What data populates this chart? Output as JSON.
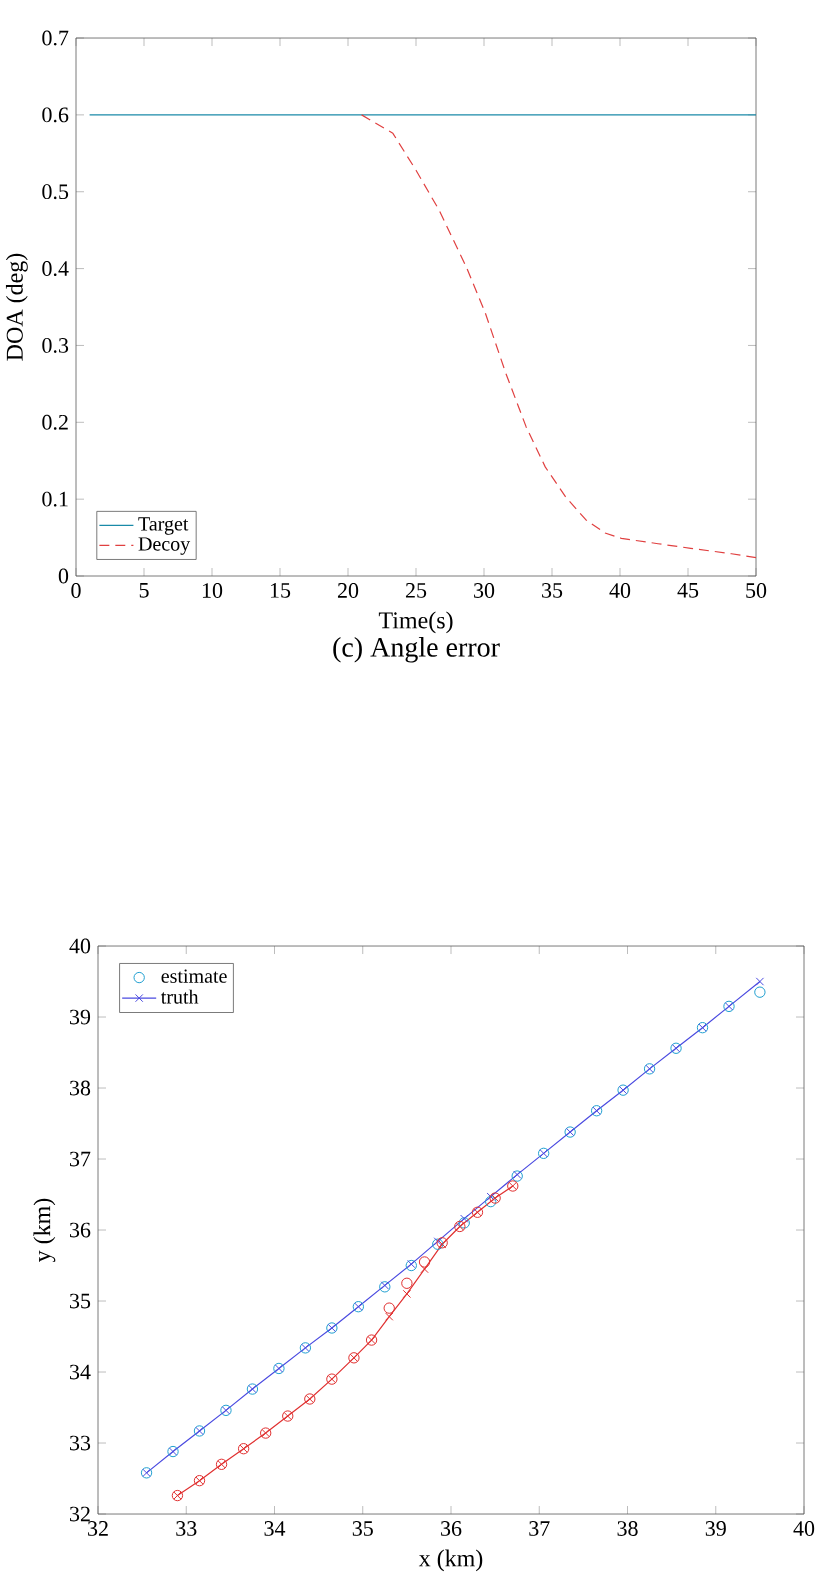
{
  "chart_data": [
    {
      "type": "line",
      "xlabel": "Time(s)",
      "ylabel": "DOA (deg)",
      "annotations": [
        "(c) Angle error"
      ],
      "xlim": [
        0,
        50
      ],
      "ylim": [
        0,
        0.7
      ],
      "xticks": [
        0,
        5,
        10,
        15,
        20,
        25,
        30,
        35,
        40,
        45,
        50
      ],
      "yticks": [
        0,
        0.1,
        0.2,
        0.3,
        0.4,
        0.5,
        0.6,
        0.7
      ],
      "legend": "bottom left",
      "marker": "none",
      "series": [
        {
          "name": "Target",
          "color": "#1a8aa8",
          "line_style": "solid",
          "x": [
            1,
            50
          ],
          "values": [
            0.6,
            0.6
          ]
        },
        {
          "name": "Decoy",
          "color": "#e04040",
          "line_style": "dashed",
          "x": [
            21,
            23.3,
            25,
            26.7,
            28.7,
            30.1,
            31.6,
            33.1,
            34.5,
            36,
            37.5,
            38.9,
            40.1,
            42.8,
            45.2,
            48.2,
            50
          ],
          "values": [
            0.6,
            0.576,
            0.528,
            0.476,
            0.402,
            0.342,
            0.264,
            0.194,
            0.142,
            0.103,
            0.073,
            0.056,
            0.049,
            0.042,
            0.036,
            0.029,
            0.024
          ]
        }
      ]
    },
    {
      "type": "scatter",
      "xlabel": "x (km)",
      "ylabel": "y (km)",
      "xlim": [
        32,
        40
      ],
      "ylim": [
        32,
        40
      ],
      "xticks": [
        32,
        33,
        34,
        35,
        36,
        37,
        38,
        39,
        40
      ],
      "yticks": [
        32,
        33,
        34,
        35,
        36,
        37,
        38,
        39,
        40
      ],
      "legend": "top left",
      "series": [
        {
          "name": "estimate",
          "color": "#1f9fd0",
          "marker": "circle",
          "x": [
            32.55,
            32.85,
            33.15,
            33.45,
            33.75,
            34.05,
            34.35,
            34.65,
            34.95,
            35.25,
            35.55,
            35.85,
            36.15,
            36.45,
            36.75,
            37.05,
            37.35,
            37.65,
            37.95,
            38.25,
            38.55,
            38.85,
            39.15,
            39.5
          ],
          "values": [
            32.58,
            32.88,
            33.17,
            33.46,
            33.76,
            34.05,
            34.34,
            34.62,
            34.92,
            35.2,
            35.5,
            35.8,
            36.1,
            36.4,
            36.76,
            37.08,
            37.38,
            37.68,
            37.97,
            38.27,
            38.56,
            38.85,
            39.15,
            39.35
          ]
        },
        {
          "name": "truth",
          "type": "line",
          "color": "#4a4ae0",
          "marker": "cross",
          "x": [
            32.55,
            32.85,
            33.15,
            33.45,
            33.75,
            34.05,
            34.35,
            34.65,
            34.95,
            35.25,
            35.55,
            35.85,
            36.15,
            36.45,
            36.75,
            37.05,
            37.35,
            37.65,
            37.95,
            38.25,
            38.55,
            38.85,
            39.15,
            39.5
          ],
          "values": [
            32.58,
            32.88,
            33.17,
            33.46,
            33.76,
            34.05,
            34.34,
            34.62,
            34.92,
            35.22,
            35.52,
            35.84,
            36.16,
            36.47,
            36.78,
            37.08,
            37.38,
            37.68,
            37.97,
            38.27,
            38.56,
            38.85,
            39.15,
            39.5
          ]
        },
        {
          "color": "#e03030",
          "marker": "circle",
          "x": [
            32.9,
            33.15,
            33.4,
            33.65,
            33.9,
            34.15,
            34.4,
            34.65,
            34.9,
            35.1,
            35.3,
            35.5,
            35.7,
            35.9,
            36.1,
            36.3,
            36.5,
            36.7
          ],
          "values": [
            32.26,
            32.47,
            32.7,
            32.92,
            33.14,
            33.38,
            33.62,
            33.9,
            34.2,
            34.45,
            34.9,
            35.25,
            35.55,
            35.82,
            36.05,
            36.25,
            36.45,
            36.62
          ]
        },
        {
          "type": "line",
          "color": "#e03030",
          "marker": "cross",
          "x": [
            32.9,
            33.15,
            33.4,
            33.65,
            33.9,
            34.15,
            34.4,
            34.65,
            34.9,
            35.1,
            35.3,
            35.5,
            35.7,
            35.9,
            36.1,
            36.3,
            36.5,
            36.7
          ],
          "values": [
            32.26,
            32.47,
            32.7,
            32.92,
            33.14,
            33.38,
            33.62,
            33.9,
            34.2,
            34.45,
            34.78,
            35.1,
            35.45,
            35.8,
            36.05,
            36.25,
            36.45,
            36.62
          ]
        }
      ]
    }
  ]
}
